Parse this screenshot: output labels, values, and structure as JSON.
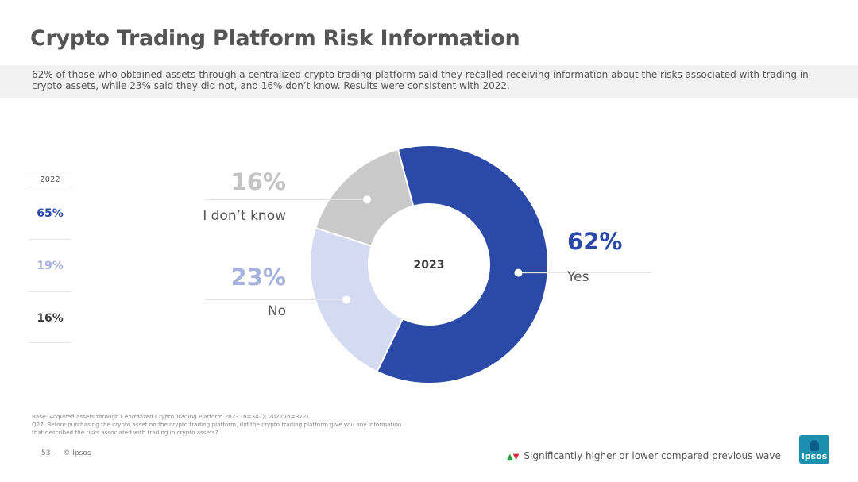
{
  "title": "Crypto Trading Platform Risk Information",
  "summary": "62% of those who obtained assets through a centralized crypto trading platform said they recalled receiving information about the risks associated with trading in crypto assets, while 23% said they did not, and 16% don’t know. Results were consistent with 2022.",
  "previous_wave": {
    "label": "2022",
    "values": [
      {
        "value": "65%",
        "color": "#2b4aa8"
      },
      {
        "value": "19%",
        "color": "#a6b3de"
      },
      {
        "value": "16%",
        "color": "#3a3a3a"
      }
    ]
  },
  "chart_data": {
    "type": "pie",
    "donut": true,
    "center_label": "2023",
    "series": [
      {
        "name": "Yes",
        "value": 62,
        "label": "62%",
        "color": "#2b4aa8"
      },
      {
        "name": "No",
        "value": 23,
        "label": "23%",
        "color": "#d3daf1"
      },
      {
        "name": "I don’t know",
        "value": 16,
        "label": "16%",
        "color": "#c9c9c9"
      }
    ],
    "label_colors": {
      "Yes": "#2b4aa8",
      "No": "#a6b3de",
      "I don’t know": "#c4c4c4"
    }
  },
  "footnote": {
    "base": "Base: Acquired assets through Centralized Crypto Trading Platform 2023 (n=347); 2022 (n=372)",
    "question": "Q27. Before purchasing the crypto asset on the crypto trading platform, did the crypto trading platform give you any information that described the risks associated with trading in crypto assets?"
  },
  "page": {
    "number": "53",
    "separator": "–",
    "copyright": "© Ipsos"
  },
  "legend": {
    "up_icon": "triangle-up-green",
    "down_icon": "triangle-down-red",
    "text": "Significantly higher or lower compared previous wave"
  },
  "logo": {
    "text": "Ipsos"
  }
}
